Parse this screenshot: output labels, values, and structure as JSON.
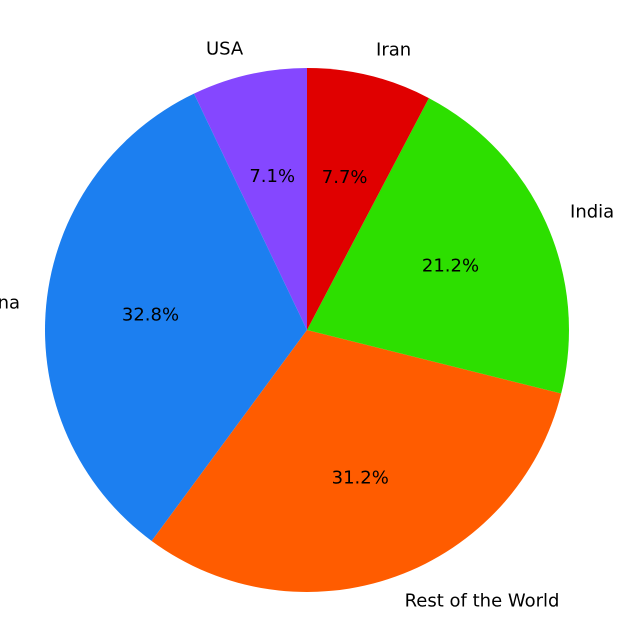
{
  "chart_data": {
    "type": "pie",
    "start_angle_deg": 90,
    "direction": "counterclockwise",
    "slices": [
      {
        "label": "USA",
        "value": 7.1,
        "pct_label": "7.1%",
        "color": "#8547ff"
      },
      {
        "label": "China",
        "value": 32.8,
        "pct_label": "32.8%",
        "color": "#1c7ff0"
      },
      {
        "label": "Rest of the World",
        "value": 31.2,
        "pct_label": "31.2%",
        "color": "#ff5c00"
      },
      {
        "label": "India",
        "value": 21.2,
        "pct_label": "21.2%",
        "color": "#2ddf00"
      },
      {
        "label": "Iran",
        "value": 7.7,
        "pct_label": "7.7%",
        "color": "#e00000"
      }
    ]
  }
}
